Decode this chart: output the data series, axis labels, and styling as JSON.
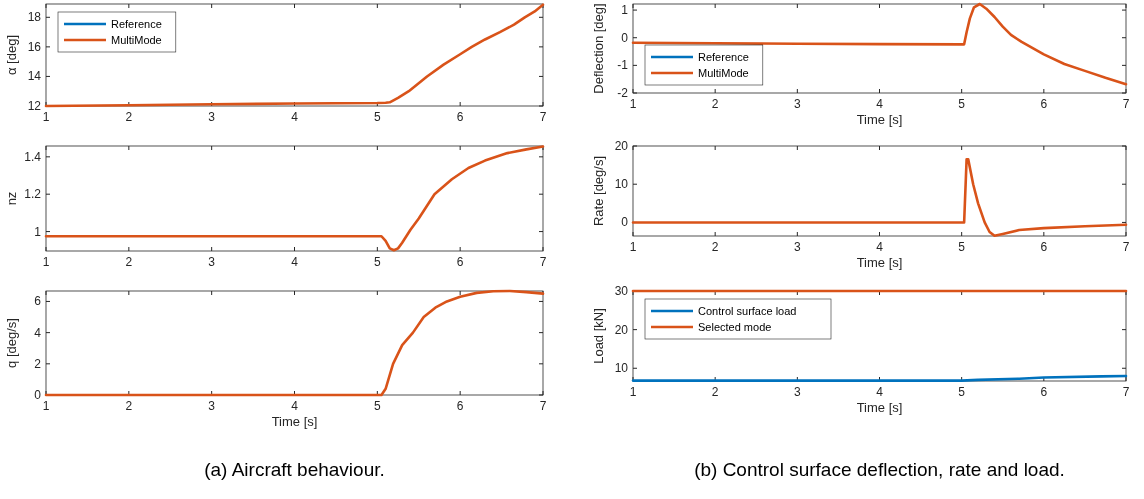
{
  "chart_data": [
    {
      "type": "line",
      "ylabel": "α [deg]",
      "xlim": [
        1,
        7
      ],
      "xticks": [
        1,
        2,
        3,
        4,
        5,
        6,
        7
      ],
      "ylim": [
        12,
        18.9
      ],
      "yticks": [
        12,
        14,
        16,
        18
      ],
      "legend": "top left",
      "x": [
        1,
        2,
        3,
        4,
        5,
        5.1,
        5.15,
        5.25,
        5.38,
        5.6,
        5.8,
        6,
        6.14,
        6.3,
        6.48,
        6.65,
        6.78,
        6.9,
        7
      ],
      "series": [
        {
          "name": "Reference",
          "color": "#0072bd",
          "values": [
            null,
            null,
            null,
            null,
            null,
            null,
            null,
            null,
            null,
            null,
            null,
            null,
            null,
            null,
            null,
            null,
            null,
            null,
            null
          ]
        },
        {
          "name": "MultiMode",
          "color": "#d95319",
          "values": [
            12,
            12.05,
            12.12,
            12.17,
            12.2,
            12.22,
            12.25,
            12.55,
            13,
            14,
            14.8,
            15.5,
            16,
            16.5,
            17,
            17.5,
            18,
            18.4,
            18.85
          ]
        }
      ]
    },
    {
      "type": "line",
      "ylabel": "nz",
      "xlim": [
        1,
        7
      ],
      "xticks": [
        1,
        2,
        3,
        4,
        5,
        6,
        7
      ],
      "ylim": [
        0.896,
        1.458
      ],
      "yticks": [
        {
          "value": 1,
          "label": "1"
        },
        {
          "value": 1.2,
          "label": "1.2"
        },
        {
          "value": 1.4,
          "label": "1.4"
        }
      ],
      "x": [
        1,
        2,
        3,
        4,
        5,
        5.05,
        5.1,
        5.15,
        5.2,
        5.25,
        5.3,
        5.4,
        5.5,
        5.69,
        5.9,
        6.1,
        6.3,
        6.57,
        6.8,
        7
      ],
      "series": [
        {
          "color": "#d95319",
          "values": [
            0.975,
            0.975,
            0.975,
            0.975,
            0.975,
            0.975,
            0.95,
            0.91,
            0.9,
            0.91,
            0.94,
            1.01,
            1.07,
            1.2,
            1.28,
            1.34,
            1.38,
            1.42,
            1.44,
            1.455
          ]
        }
      ]
    },
    {
      "type": "line",
      "ylabel": "q [deg/s]",
      "xlabel": "Time [s]",
      "xlim": [
        1,
        7
      ],
      "xticks": [
        1,
        2,
        3,
        4,
        5,
        6,
        7
      ],
      "ylim": [
        0,
        6.67
      ],
      "yticks": [
        0,
        2,
        4,
        6
      ],
      "annotations": [
        "(a) Aircraft behaviour."
      ],
      "x": [
        1,
        2,
        3,
        4,
        5,
        5.05,
        5.1,
        5.19,
        5.3,
        5.43,
        5.56,
        5.7,
        5.84,
        6,
        6.2,
        6.4,
        6.6,
        6.8,
        7
      ],
      "series": [
        {
          "color": "#d95319",
          "values": [
            0,
            0,
            0,
            0,
            0,
            0,
            0.4,
            2,
            3.2,
            4,
            5,
            5.6,
            6,
            6.3,
            6.55,
            6.65,
            6.67,
            6.6,
            6.5
          ]
        }
      ]
    },
    {
      "type": "line",
      "ylabel": "Deflection [deg]",
      "xlabel": "Time [s]",
      "xlim": [
        1,
        7
      ],
      "xticks": [
        1,
        2,
        3,
        4,
        5,
        6,
        7
      ],
      "ylim": [
        -2,
        1.22
      ],
      "yticks": [
        -2,
        -1,
        0,
        1
      ],
      "legend": "bottom left",
      "x": [
        1,
        2,
        3,
        4,
        5,
        5.03,
        5.06,
        5.1,
        5.15,
        5.22,
        5.3,
        5.4,
        5.5,
        5.6,
        5.73,
        6,
        6.25,
        6.5,
        6.75,
        7
      ],
      "series": [
        {
          "name": "Reference",
          "color": "#0072bd",
          "values": [
            null,
            null,
            null,
            null,
            null,
            null,
            null,
            null,
            null,
            null,
            null,
            null,
            null,
            null,
            null,
            null,
            null,
            null,
            null,
            null
          ]
        },
        {
          "name": "MultiMode",
          "color": "#d95319",
          "values": [
            -0.18,
            -0.2,
            -0.22,
            -0.23,
            -0.24,
            -0.24,
            0.2,
            0.7,
            1.1,
            1.22,
            1.05,
            0.75,
            0.4,
            0.1,
            -0.15,
            -0.6,
            -0.95,
            -1.2,
            -1.45,
            -1.68
          ]
        }
      ]
    },
    {
      "type": "line",
      "ylabel": "Rate [deg/s]",
      "xlabel": "Time [s]",
      "xlim": [
        1,
        7
      ],
      "xticks": [
        1,
        2,
        3,
        4,
        5,
        6,
        7
      ],
      "ylim": [
        -3.55,
        20
      ],
      "yticks": [
        0,
        10,
        20
      ],
      "x": [
        1,
        2,
        3,
        4,
        5,
        5.03,
        5.06,
        5.08,
        5.14,
        5.2,
        5.28,
        5.34,
        5.4,
        5.5,
        5.7,
        6,
        6.5,
        7
      ],
      "series": [
        {
          "color": "#d95319",
          "values": [
            0,
            0,
            0,
            0,
            0,
            0,
            16.5,
            16.5,
            10,
            5,
            0,
            -2.5,
            -3.5,
            -3,
            -2,
            -1.5,
            -1,
            -0.6
          ]
        }
      ]
    },
    {
      "type": "line",
      "ylabel": "Load [kN]",
      "xlabel": "Time [s]",
      "xlim": [
        1,
        7
      ],
      "xticks": [
        1,
        2,
        3,
        4,
        5,
        6,
        7
      ],
      "ylim": [
        6.7,
        30
      ],
      "yticks": [
        10,
        20,
        30
      ],
      "legend": "top left",
      "annotations": [
        "(b) Control surface deflection, rate and load."
      ],
      "x": [
        1,
        2,
        3,
        4,
        5,
        5.2,
        5.7,
        6,
        6.7,
        7
      ],
      "series": [
        {
          "name": "Control surface load",
          "color": "#0072bd",
          "values": [
            6.8,
            6.8,
            6.8,
            6.8,
            6.8,
            7,
            7.3,
            7.6,
            7.9,
            8
          ]
        },
        {
          "name": "Selected mode",
          "color": "#d95319",
          "values": [
            30,
            30,
            30,
            30,
            30,
            30,
            30,
            30,
            30,
            30
          ]
        }
      ]
    }
  ]
}
